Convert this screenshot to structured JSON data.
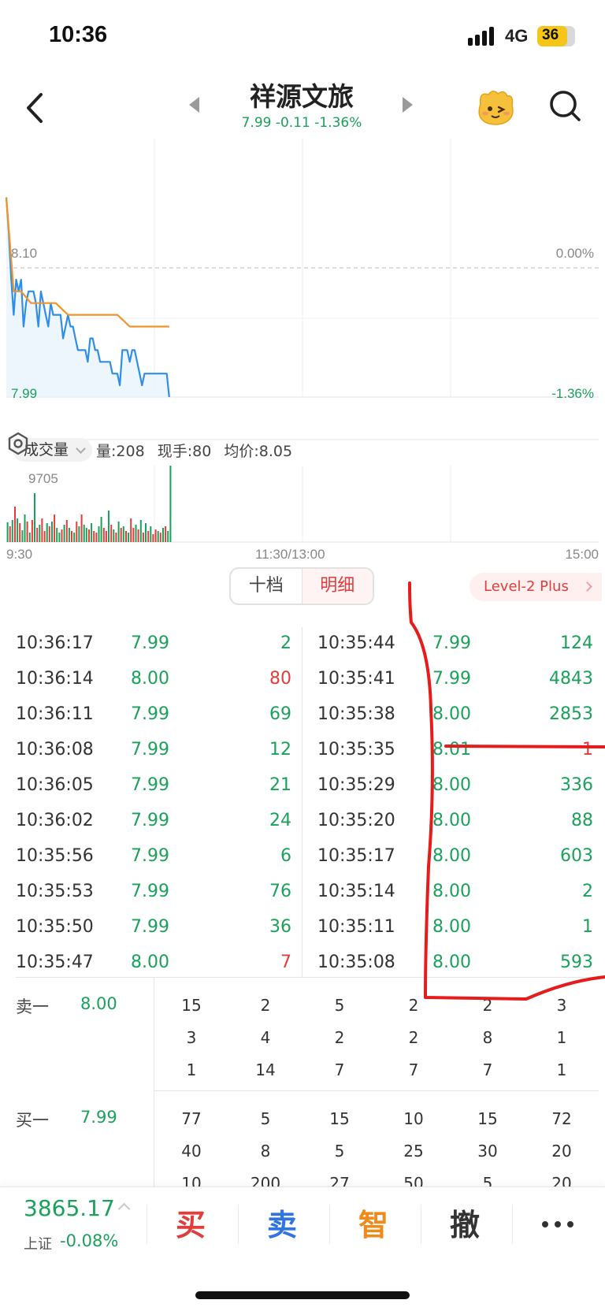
{
  "status": {
    "time": "10:36",
    "network": "4G",
    "battery": "36"
  },
  "header": {
    "title": "祥源文旅",
    "quote": "7.99 -0.11 -1.36%"
  },
  "chart": {
    "top_left_price": "8.10",
    "top_right_pct": "0.00%",
    "bottom_left_price": "7.99",
    "bottom_right_pct": "-1.36%",
    "volume_selector": "成交量",
    "volume_info": {
      "vol": "量:208",
      "hand": "现手:80",
      "avg": "均价:8.05"
    },
    "volume_peak": "9705",
    "time_labels": [
      "9:30",
      "11:30/13:00",
      "15:00"
    ]
  },
  "tabs": {
    "ten": "十档",
    "detail": "明细",
    "level2": "Level-2 Plus"
  },
  "trades": {
    "left": [
      {
        "time": "10:36:17",
        "price": "7.99",
        "vol": "2",
        "side": "green"
      },
      {
        "time": "10:36:14",
        "price": "8.00",
        "vol": "80",
        "side": "red"
      },
      {
        "time": "10:36:11",
        "price": "7.99",
        "vol": "69",
        "side": "green"
      },
      {
        "time": "10:36:08",
        "price": "7.99",
        "vol": "12",
        "side": "green"
      },
      {
        "time": "10:36:05",
        "price": "7.99",
        "vol": "21",
        "side": "green"
      },
      {
        "time": "10:36:02",
        "price": "7.99",
        "vol": "24",
        "side": "green"
      },
      {
        "time": "10:35:56",
        "price": "7.99",
        "vol": "6",
        "side": "green"
      },
      {
        "time": "10:35:53",
        "price": "7.99",
        "vol": "76",
        "side": "green"
      },
      {
        "time": "10:35:50",
        "price": "7.99",
        "vol": "36",
        "side": "green"
      },
      {
        "time": "10:35:47",
        "price": "8.00",
        "vol": "7",
        "side": "red"
      }
    ],
    "right": [
      {
        "time": "10:35:44",
        "price": "7.99",
        "vol": "124",
        "side": "green"
      },
      {
        "time": "10:35:41",
        "price": "7.99",
        "vol": "4843",
        "side": "green"
      },
      {
        "time": "10:35:38",
        "price": "8.00",
        "vol": "2853",
        "side": "green"
      },
      {
        "time": "10:35:35",
        "price": "8.01",
        "vol": "1",
        "side": "red"
      },
      {
        "time": "10:35:29",
        "price": "8.00",
        "vol": "336",
        "side": "green"
      },
      {
        "time": "10:35:20",
        "price": "8.00",
        "vol": "88",
        "side": "green"
      },
      {
        "time": "10:35:17",
        "price": "8.00",
        "vol": "603",
        "side": "green"
      },
      {
        "time": "10:35:14",
        "price": "8.00",
        "vol": "2",
        "side": "green"
      },
      {
        "time": "10:35:11",
        "price": "8.00",
        "vol": "1",
        "side": "green"
      },
      {
        "time": "10:35:08",
        "price": "8.00",
        "vol": "593",
        "side": "green"
      }
    ]
  },
  "queue": {
    "sell": {
      "label": "卖一",
      "price": "8.00",
      "rows": [
        [
          "15",
          "2",
          "5",
          "2",
          "2",
          "3"
        ],
        [
          "3",
          "4",
          "2",
          "2",
          "8",
          "1"
        ],
        [
          "1",
          "14",
          "7",
          "7",
          "7",
          "1"
        ]
      ]
    },
    "buy": {
      "label": "买一",
      "price": "7.99",
      "rows": [
        [
          "77",
          "5",
          "15",
          "10",
          "15",
          "72"
        ],
        [
          "40",
          "8",
          "5",
          "25",
          "30",
          "20"
        ],
        [
          "10",
          "200",
          "27",
          "50",
          "5",
          "20"
        ]
      ]
    }
  },
  "bottom": {
    "index_value": "3865.17",
    "index_name": "上证",
    "index_change": "-0.08%",
    "buy": "买",
    "sell": "卖",
    "smart": "智",
    "cancel": "撤",
    "colors": {
      "buy": "#e23d3d",
      "sell": "#2f74e0",
      "smart": "#ef8a1c",
      "cancel": "#333333"
    }
  },
  "chart_data": {
    "type": "line",
    "series": [
      {
        "x": [
          "9:30",
          "9:31",
          "9:32",
          "9:33",
          "9:34",
          "9:35",
          "9:36",
          "9:37",
          "9:38",
          "9:39",
          "9:40",
          "9:41",
          "9:42",
          "9:43",
          "9:44",
          "9:45",
          "9:46",
          "9:47",
          "9:48",
          "9:49",
          "9:50",
          "9:51",
          "9:52",
          "9:53",
          "9:54",
          "9:55",
          "9:56",
          "9:57",
          "9:58",
          "9:59",
          "10:00",
          "10:01",
          "10:02",
          "10:03",
          "10:04",
          "10:05",
          "10:06",
          "10:07",
          "10:08",
          "10:09",
          "10:10",
          "10:11",
          "10:12",
          "10:13",
          "10:14",
          "10:15",
          "10:16",
          "10:17",
          "10:18",
          "10:19",
          "10:20",
          "10:21",
          "10:22",
          "10:23",
          "10:24",
          "10:25",
          "10:26",
          "10:27",
          "10:28",
          "10:29",
          "10:30",
          "10:31",
          "10:32",
          "10:33",
          "10:34",
          "10:35",
          "10:36"
        ],
        "values": [
          8.16,
          8.13,
          8.09,
          8.06,
          8.09,
          8.08,
          8.09,
          8.05,
          8.07,
          8.08,
          8.08,
          8.08,
          8.07,
          8.05,
          8.08,
          8.07,
          8.06,
          8.05,
          8.07,
          8.06,
          8.06,
          8.06,
          8.06,
          8.04,
          8.05,
          8.06,
          8.05,
          8.05,
          8.04,
          8.03,
          8.03,
          8.03,
          8.03,
          8.02,
          8.04,
          8.04,
          8.03,
          8.03,
          8.02,
          8.02,
          8.02,
          8.02,
          8.02,
          8.01,
          8.01,
          8.01,
          8.0,
          8.03,
          8.03,
          8.03,
          8.02,
          8.03,
          8.03,
          8.02,
          8.01,
          8.0,
          8.01,
          8.01,
          8.01,
          8.01,
          8.01,
          8.01,
          8.01,
          8.01,
          8.01,
          8.01,
          7.99
        ]
      },
      {
        "x": [
          "9:30",
          "9:33",
          "9:36",
          "9:40",
          "9:45",
          "9:50",
          "9:55",
          "10:00",
          "10:05",
          "10:10",
          "10:15",
          "10:20",
          "10:25",
          "10:30",
          "10:36"
        ],
        "values": [
          8.16,
          8.08,
          8.08,
          8.07,
          8.07,
          8.07,
          8.06,
          8.06,
          8.06,
          8.06,
          8.06,
          8.05,
          8.05,
          8.05,
          8.05
        ]
      }
    ],
    "colors": [
      "#2f8ee8",
      "#f0932b"
    ],
    "ylim": [
      7.99,
      8.21
    ],
    "reference_price": 8.1,
    "volume": {
      "values": [
        25,
        20,
        28,
        45,
        30,
        24,
        15,
        35,
        26,
        12,
        28,
        62,
        18,
        22,
        30,
        14,
        24,
        20,
        26,
        35,
        18,
        12,
        16,
        22,
        28,
        18,
        14,
        12,
        26,
        20,
        35,
        22,
        18,
        16,
        24,
        14,
        12,
        20,
        32,
        18,
        14,
        40,
        22,
        16,
        12,
        26,
        18,
        20,
        14,
        12,
        30,
        18,
        22,
        16,
        28,
        12,
        24,
        14,
        20,
        10,
        16,
        14,
        12,
        18,
        20,
        14,
        97
      ],
      "colors": [
        "g",
        "r",
        "g",
        "r",
        "g",
        "r",
        "g",
        "g",
        "r",
        "g",
        "r",
        "g",
        "r",
        "g",
        "r",
        "r",
        "g",
        "r",
        "g",
        "r",
        "g",
        "g",
        "r",
        "g",
        "r",
        "g",
        "r",
        "g",
        "r",
        "g",
        "r",
        "g",
        "g",
        "r",
        "g",
        "r",
        "r",
        "g",
        "g",
        "r",
        "r",
        "g",
        "r",
        "g",
        "r",
        "g",
        "r",
        "g",
        "r",
        "g",
        "r",
        "r",
        "g",
        "r",
        "g",
        "r",
        "g",
        "r",
        "g",
        "r",
        "r",
        "g",
        "r",
        "g",
        "r",
        "g",
        "g"
      ],
      "ylim": [
        0,
        97.05
      ],
      "peak_label": 9705
    }
  }
}
